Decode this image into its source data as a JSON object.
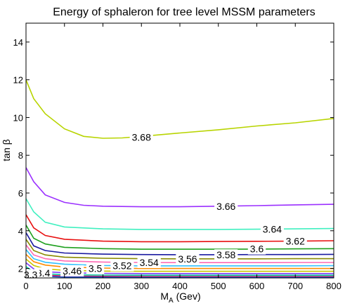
{
  "chart_data": {
    "type": "line",
    "title": "Energy of sphaleron for tree level MSSM parameters",
    "xlabel": "M",
    "xlabel_sub": "A",
    "xlabel_unit": " (Gev)",
    "ylabel": "tan β",
    "xlim": [
      0,
      800
    ],
    "ylim": [
      1.5,
      15
    ],
    "xticks": [
      "0",
      "100",
      "200",
      "300",
      "400",
      "500",
      "600",
      "700",
      "800"
    ],
    "yticks": [
      "2",
      "4",
      "6",
      "8",
      "10",
      "12",
      "14"
    ],
    "grid": false,
    "series": [
      {
        "name": "3.68",
        "color": "#b8d400",
        "label_x": 300,
        "label_y": 8.95,
        "x": [
          0,
          20,
          50,
          100,
          150,
          200,
          250,
          300,
          400,
          500,
          600,
          700,
          800
        ],
        "y": [
          12.0,
          11.0,
          10.2,
          9.4,
          9.0,
          8.9,
          8.92,
          9.0,
          9.18,
          9.35,
          9.55,
          9.72,
          9.95
        ]
      },
      {
        "name": "3.66",
        "color": "#9b30ff",
        "label_x": 520,
        "label_y": 5.3,
        "x": [
          0,
          20,
          50,
          100,
          150,
          200,
          300,
          400,
          500,
          600,
          700,
          800
        ],
        "y": [
          7.35,
          6.6,
          5.9,
          5.5,
          5.35,
          5.3,
          5.27,
          5.27,
          5.3,
          5.33,
          5.37,
          5.4
        ]
      },
      {
        "name": "3.64",
        "color": "#40f0c0",
        "label_x": 640,
        "label_y": 4.08,
        "x": [
          0,
          20,
          50,
          100,
          200,
          300,
          400,
          500,
          600,
          700,
          800
        ],
        "y": [
          5.7,
          5.0,
          4.45,
          4.2,
          4.1,
          4.07,
          4.07,
          4.07,
          4.08,
          4.1,
          4.12
        ]
      },
      {
        "name": "3.62",
        "color": "#e81010",
        "label_x": 700,
        "label_y": 3.45,
        "x": [
          0,
          20,
          50,
          100,
          200,
          300,
          400,
          500,
          600,
          700,
          800
        ],
        "y": [
          4.85,
          4.15,
          3.75,
          3.55,
          3.45,
          3.42,
          3.42,
          3.43,
          3.44,
          3.45,
          3.47
        ]
      },
      {
        "name": "3.6",
        "color": "#1ea01e",
        "label_x": 600,
        "label_y": 3.04,
        "x": [
          0,
          20,
          50,
          100,
          200,
          300,
          400,
          500,
          600,
          700,
          800
        ],
        "y": [
          4.3,
          3.6,
          3.3,
          3.12,
          3.05,
          3.02,
          3.02,
          3.02,
          3.03,
          3.04,
          3.05
        ]
      },
      {
        "name": "3.58",
        "color": "#1a1aa0",
        "label_x": 520,
        "label_y": 2.72,
        "x": [
          0,
          20,
          50,
          100,
          200,
          300,
          400,
          500,
          600,
          700,
          800
        ],
        "y": [
          3.9,
          3.2,
          2.95,
          2.82,
          2.76,
          2.74,
          2.73,
          2.73,
          2.74,
          2.74,
          2.75
        ]
      },
      {
        "name": "3.56",
        "color": "#8a8a00",
        "label_x": 420,
        "label_y": 2.5,
        "x": [
          0,
          20,
          50,
          100,
          200,
          300,
          400,
          500,
          600,
          700,
          800
        ],
        "y": [
          3.55,
          2.95,
          2.72,
          2.6,
          2.54,
          2.52,
          2.51,
          2.51,
          2.51,
          2.52,
          2.52
        ]
      },
      {
        "name": "3.54",
        "color": "#ff69b4",
        "label_x": 320,
        "label_y": 2.32,
        "x": [
          0,
          20,
          50,
          100,
          200,
          300,
          400,
          500,
          600,
          700,
          800
        ],
        "y": [
          3.25,
          2.72,
          2.52,
          2.4,
          2.34,
          2.32,
          2.31,
          2.31,
          2.31,
          2.32,
          2.32
        ]
      },
      {
        "name": "3.52",
        "color": "#30c0ff",
        "label_x": 250,
        "label_y": 2.15,
        "x": [
          0,
          20,
          50,
          100,
          200,
          300,
          400,
          500,
          600,
          700,
          800
        ],
        "y": [
          3.0,
          2.52,
          2.33,
          2.23,
          2.16,
          2.14,
          2.14,
          2.14,
          2.14,
          2.14,
          2.15
        ]
      },
      {
        "name": "3.5",
        "color": "#ff8c00",
        "label_x": 180,
        "label_y": 2.01,
        "x": [
          0,
          20,
          50,
          100,
          200,
          300,
          400,
          500,
          600,
          700,
          800
        ],
        "y": [
          2.75,
          2.36,
          2.18,
          2.08,
          2.02,
          2.0,
          2.0,
          2.0,
          2.0,
          2.0,
          2.0
        ]
      },
      {
        "name": "3.46",
        "color": "#c8c800",
        "label_x": 120,
        "label_y": 1.88,
        "x": [
          0,
          20,
          50,
          100,
          200,
          300,
          400,
          500,
          600,
          700,
          800
        ],
        "y": [
          2.5,
          2.16,
          1.98,
          1.9,
          1.86,
          1.85,
          1.85,
          1.85,
          1.85,
          1.85,
          1.85
        ]
      },
      {
        "name": "3.4",
        "color": "#7d3cff",
        "label_x": 45,
        "label_y": 1.76,
        "x": [
          0,
          20,
          50,
          100,
          200,
          300,
          400,
          500,
          600,
          700,
          800
        ],
        "y": [
          2.3,
          1.98,
          1.83,
          1.77,
          1.74,
          1.73,
          1.73,
          1.73,
          1.73,
          1.73,
          1.73
        ]
      },
      {
        "name": "3.3",
        "color": "#00c8a0",
        "label_x": 12,
        "label_y": 1.66,
        "x": [
          0,
          20,
          50,
          100,
          200,
          300,
          400,
          500,
          600,
          700,
          800
        ],
        "y": [
          2.1,
          1.82,
          1.72,
          1.67,
          1.65,
          1.64,
          1.64,
          1.64,
          1.64,
          1.64,
          1.64
        ]
      },
      {
        "name": "",
        "color": "#d01050",
        "x": [
          0,
          20,
          50,
          100,
          200,
          300,
          400,
          500,
          600,
          700,
          800
        ],
        "y": [
          1.95,
          1.72,
          1.64,
          1.6,
          1.58,
          1.57,
          1.57,
          1.57,
          1.57,
          1.57,
          1.57
        ]
      },
      {
        "name": "",
        "color": "#2050d0",
        "x": [
          0,
          20,
          50,
          100,
          200,
          300,
          400,
          500,
          600,
          700,
          800
        ],
        "y": [
          1.82,
          1.64,
          1.58,
          1.55,
          1.54,
          1.53,
          1.53,
          1.53,
          1.53,
          1.53,
          1.53
        ]
      }
    ]
  }
}
